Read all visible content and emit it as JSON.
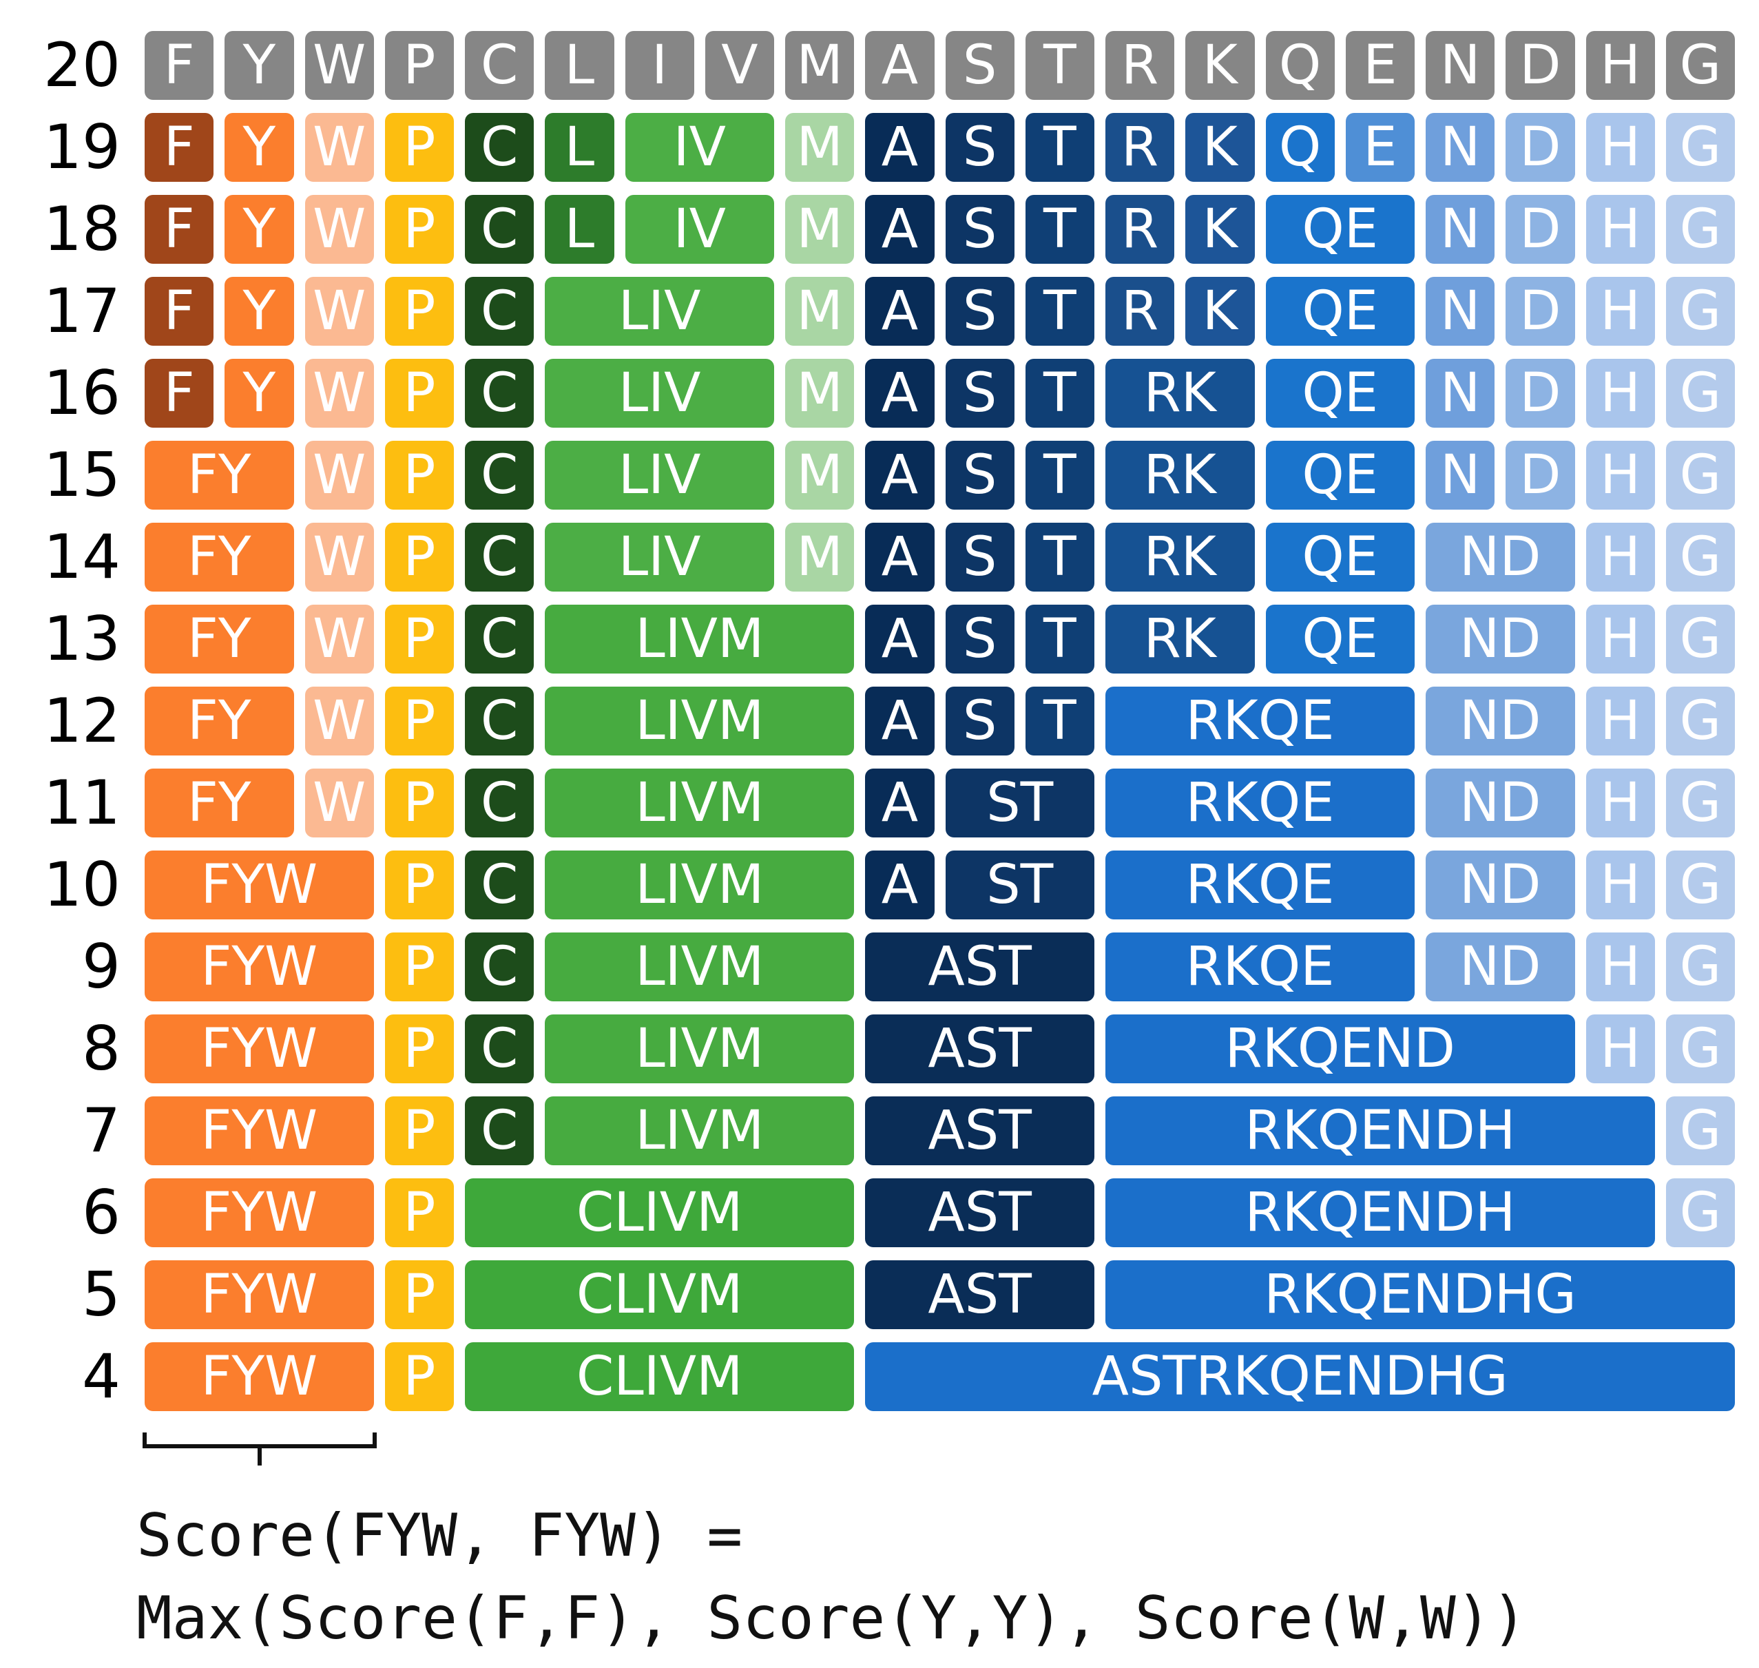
{
  "columns": [
    "F",
    "Y",
    "W",
    "P",
    "C",
    "L",
    "I",
    "V",
    "M",
    "A",
    "S",
    "T",
    "R",
    "K",
    "Q",
    "E",
    "N",
    "D",
    "H",
    "G"
  ],
  "colors": {
    "gray": "#868686",
    "F": "#a0461a",
    "Y": "#fb7e2d",
    "W": "#fbb992",
    "FY": "#fb7e2d",
    "P": "#fdbe10",
    "C": "#1d4c1b",
    "CL": "#3ea83a",
    "L": "#2d7c2b",
    "IV": "#4cae45",
    "M": "#a9d6a4",
    "LIVM": "#47ab40",
    "A": "#082c57",
    "S": "#0d3565",
    "T": "#0f3f75",
    "R": "#1a4f8c",
    "K": "#1d5598",
    "Q": "#1b74cc",
    "E": "#4f8fd6",
    "N": "#6f9fdc",
    "D": "#8db3e3",
    "H": "#a9c5ec",
    "G": "#b4cbec",
    "AST": "#0a2d57",
    "RK": "#165293",
    "QE": "#1a74cc",
    "RKQE": "#1b6fca",
    "ND": "#7aa6dd"
  },
  "rows": [
    {
      "n": "20",
      "groups": [
        [
          "F",
          "gray"
        ],
        [
          "Y",
          "gray"
        ],
        [
          "W",
          "gray"
        ],
        [
          "P",
          "gray"
        ],
        [
          "C",
          "gray"
        ],
        [
          "L",
          "gray"
        ],
        [
          "I",
          "gray"
        ],
        [
          "V",
          "gray"
        ],
        [
          "M",
          "gray"
        ],
        [
          "A",
          "gray"
        ],
        [
          "S",
          "gray"
        ],
        [
          "T",
          "gray"
        ],
        [
          "R",
          "gray"
        ],
        [
          "K",
          "gray"
        ],
        [
          "Q",
          "gray"
        ],
        [
          "E",
          "gray"
        ],
        [
          "N",
          "gray"
        ],
        [
          "D",
          "gray"
        ],
        [
          "H",
          "gray"
        ],
        [
          "G",
          "gray"
        ]
      ]
    },
    {
      "n": "19",
      "groups": [
        [
          "F",
          "F"
        ],
        [
          "Y",
          "Y"
        ],
        [
          "W",
          "W"
        ],
        [
          "P",
          "P"
        ],
        [
          "C",
          "C"
        ],
        [
          "L",
          "L"
        ],
        [
          "IV",
          "IV"
        ],
        [
          "M",
          "M"
        ],
        [
          "A",
          "A"
        ],
        [
          "S",
          "S"
        ],
        [
          "T",
          "T"
        ],
        [
          "R",
          "R"
        ],
        [
          "K",
          "K"
        ],
        [
          "Q",
          "Q"
        ],
        [
          "E",
          "E"
        ],
        [
          "N",
          "N"
        ],
        [
          "D",
          "D"
        ],
        [
          "H",
          "H"
        ],
        [
          "G",
          "G"
        ]
      ]
    },
    {
      "n": "18",
      "groups": [
        [
          "F",
          "F"
        ],
        [
          "Y",
          "Y"
        ],
        [
          "W",
          "W"
        ],
        [
          "P",
          "P"
        ],
        [
          "C",
          "C"
        ],
        [
          "L",
          "L"
        ],
        [
          "IV",
          "IV"
        ],
        [
          "M",
          "M"
        ],
        [
          "A",
          "A"
        ],
        [
          "S",
          "S"
        ],
        [
          "T",
          "T"
        ],
        [
          "R",
          "R"
        ],
        [
          "K",
          "K"
        ],
        [
          "QE",
          "QE"
        ],
        [
          "N",
          "N"
        ],
        [
          "D",
          "D"
        ],
        [
          "H",
          "H"
        ],
        [
          "G",
          "G"
        ]
      ]
    },
    {
      "n": "17",
      "groups": [
        [
          "F",
          "F"
        ],
        [
          "Y",
          "Y"
        ],
        [
          "W",
          "W"
        ],
        [
          "P",
          "P"
        ],
        [
          "C",
          "C"
        ],
        [
          "LIV",
          "IV"
        ],
        [
          "M",
          "M"
        ],
        [
          "A",
          "A"
        ],
        [
          "S",
          "S"
        ],
        [
          "T",
          "T"
        ],
        [
          "R",
          "R"
        ],
        [
          "K",
          "K"
        ],
        [
          "QE",
          "QE"
        ],
        [
          "N",
          "N"
        ],
        [
          "D",
          "D"
        ],
        [
          "H",
          "H"
        ],
        [
          "G",
          "G"
        ]
      ]
    },
    {
      "n": "16",
      "groups": [
        [
          "F",
          "F"
        ],
        [
          "Y",
          "Y"
        ],
        [
          "W",
          "W"
        ],
        [
          "P",
          "P"
        ],
        [
          "C",
          "C"
        ],
        [
          "LIV",
          "IV"
        ],
        [
          "M",
          "M"
        ],
        [
          "A",
          "A"
        ],
        [
          "S",
          "S"
        ],
        [
          "T",
          "T"
        ],
        [
          "RK",
          "RK"
        ],
        [
          "QE",
          "QE"
        ],
        [
          "N",
          "N"
        ],
        [
          "D",
          "D"
        ],
        [
          "H",
          "H"
        ],
        [
          "G",
          "G"
        ]
      ]
    },
    {
      "n": "15",
      "groups": [
        [
          "FY",
          "FY"
        ],
        [
          "W",
          "W"
        ],
        [
          "P",
          "P"
        ],
        [
          "C",
          "C"
        ],
        [
          "LIV",
          "IV"
        ],
        [
          "M",
          "M"
        ],
        [
          "A",
          "A"
        ],
        [
          "S",
          "S"
        ],
        [
          "T",
          "T"
        ],
        [
          "RK",
          "RK"
        ],
        [
          "QE",
          "QE"
        ],
        [
          "N",
          "N"
        ],
        [
          "D",
          "D"
        ],
        [
          "H",
          "H"
        ],
        [
          "G",
          "G"
        ]
      ]
    },
    {
      "n": "14",
      "groups": [
        [
          "FY",
          "FY"
        ],
        [
          "W",
          "W"
        ],
        [
          "P",
          "P"
        ],
        [
          "C",
          "C"
        ],
        [
          "LIV",
          "IV"
        ],
        [
          "M",
          "M"
        ],
        [
          "A",
          "A"
        ],
        [
          "S",
          "S"
        ],
        [
          "T",
          "T"
        ],
        [
          "RK",
          "RK"
        ],
        [
          "QE",
          "QE"
        ],
        [
          "ND",
          "ND"
        ],
        [
          "H",
          "H"
        ],
        [
          "G",
          "G"
        ]
      ]
    },
    {
      "n": "13",
      "groups": [
        [
          "FY",
          "FY"
        ],
        [
          "W",
          "W"
        ],
        [
          "P",
          "P"
        ],
        [
          "C",
          "C"
        ],
        [
          "LIVM",
          "LIVM"
        ],
        [
          "A",
          "A"
        ],
        [
          "S",
          "S"
        ],
        [
          "T",
          "T"
        ],
        [
          "RK",
          "RK"
        ],
        [
          "QE",
          "QE"
        ],
        [
          "ND",
          "ND"
        ],
        [
          "H",
          "H"
        ],
        [
          "G",
          "G"
        ]
      ]
    },
    {
      "n": "12",
      "groups": [
        [
          "FY",
          "FY"
        ],
        [
          "W",
          "W"
        ],
        [
          "P",
          "P"
        ],
        [
          "C",
          "C"
        ],
        [
          "LIVM",
          "LIVM"
        ],
        [
          "A",
          "A"
        ],
        [
          "S",
          "S"
        ],
        [
          "T",
          "T"
        ],
        [
          "RKQE",
          "RKQE"
        ],
        [
          "ND",
          "ND"
        ],
        [
          "H",
          "H"
        ],
        [
          "G",
          "G"
        ]
      ]
    },
    {
      "n": "11",
      "groups": [
        [
          "FY",
          "FY"
        ],
        [
          "W",
          "W"
        ],
        [
          "P",
          "P"
        ],
        [
          "C",
          "C"
        ],
        [
          "LIVM",
          "LIVM"
        ],
        [
          "A",
          "A"
        ],
        [
          "ST",
          "S"
        ],
        [
          "RKQE",
          "RKQE"
        ],
        [
          "ND",
          "ND"
        ],
        [
          "H",
          "H"
        ],
        [
          "G",
          "G"
        ]
      ]
    },
    {
      "n": "10",
      "groups": [
        [
          "FYW",
          "FY"
        ],
        [
          "P",
          "P"
        ],
        [
          "C",
          "C"
        ],
        [
          "LIVM",
          "LIVM"
        ],
        [
          "A",
          "A"
        ],
        [
          "ST",
          "S"
        ],
        [
          "RKQE",
          "RKQE"
        ],
        [
          "ND",
          "ND"
        ],
        [
          "H",
          "H"
        ],
        [
          "G",
          "G"
        ]
      ]
    },
    {
      "n": "9",
      "groups": [
        [
          "FYW",
          "FY"
        ],
        [
          "P",
          "P"
        ],
        [
          "C",
          "C"
        ],
        [
          "LIVM",
          "LIVM"
        ],
        [
          "AST",
          "AST"
        ],
        [
          "RKQE",
          "RKQE"
        ],
        [
          "ND",
          "ND"
        ],
        [
          "H",
          "H"
        ],
        [
          "G",
          "G"
        ]
      ]
    },
    {
      "n": "8",
      "groups": [
        [
          "FYW",
          "FY"
        ],
        [
          "P",
          "P"
        ],
        [
          "C",
          "C"
        ],
        [
          "LIVM",
          "LIVM"
        ],
        [
          "AST",
          "AST"
        ],
        [
          "RKQEND",
          "RKQE"
        ],
        [
          "H",
          "H"
        ],
        [
          "G",
          "G"
        ]
      ]
    },
    {
      "n": "7",
      "groups": [
        [
          "FYW",
          "FY"
        ],
        [
          "P",
          "P"
        ],
        [
          "C",
          "C"
        ],
        [
          "LIVM",
          "LIVM"
        ],
        [
          "AST",
          "AST"
        ],
        [
          "RKQENDH",
          "RKQE"
        ],
        [
          "G",
          "G"
        ]
      ]
    },
    {
      "n": "6",
      "groups": [
        [
          "FYW",
          "FY"
        ],
        [
          "P",
          "P"
        ],
        [
          "CLIVM",
          "CL"
        ],
        [
          "AST",
          "AST"
        ],
        [
          "RKQENDH",
          "RKQE"
        ],
        [
          "G",
          "G"
        ]
      ]
    },
    {
      "n": "5",
      "groups": [
        [
          "FYW",
          "FY"
        ],
        [
          "P",
          "P"
        ],
        [
          "CLIVM",
          "CL"
        ],
        [
          "AST",
          "AST"
        ],
        [
          "RKQENDHG",
          "RKQE"
        ]
      ]
    },
    {
      "n": "4",
      "groups": [
        [
          "FYW",
          "FY"
        ],
        [
          "P",
          "P"
        ],
        [
          "CLIVM",
          "CL"
        ],
        [
          "ASTRKQENDHG",
          "RKQE"
        ]
      ]
    }
  ],
  "formula": {
    "line1": "Score(FYW, FYW) =",
    "line2": "Max(Score(F,F), Score(Y,Y), Score(W,W))"
  }
}
